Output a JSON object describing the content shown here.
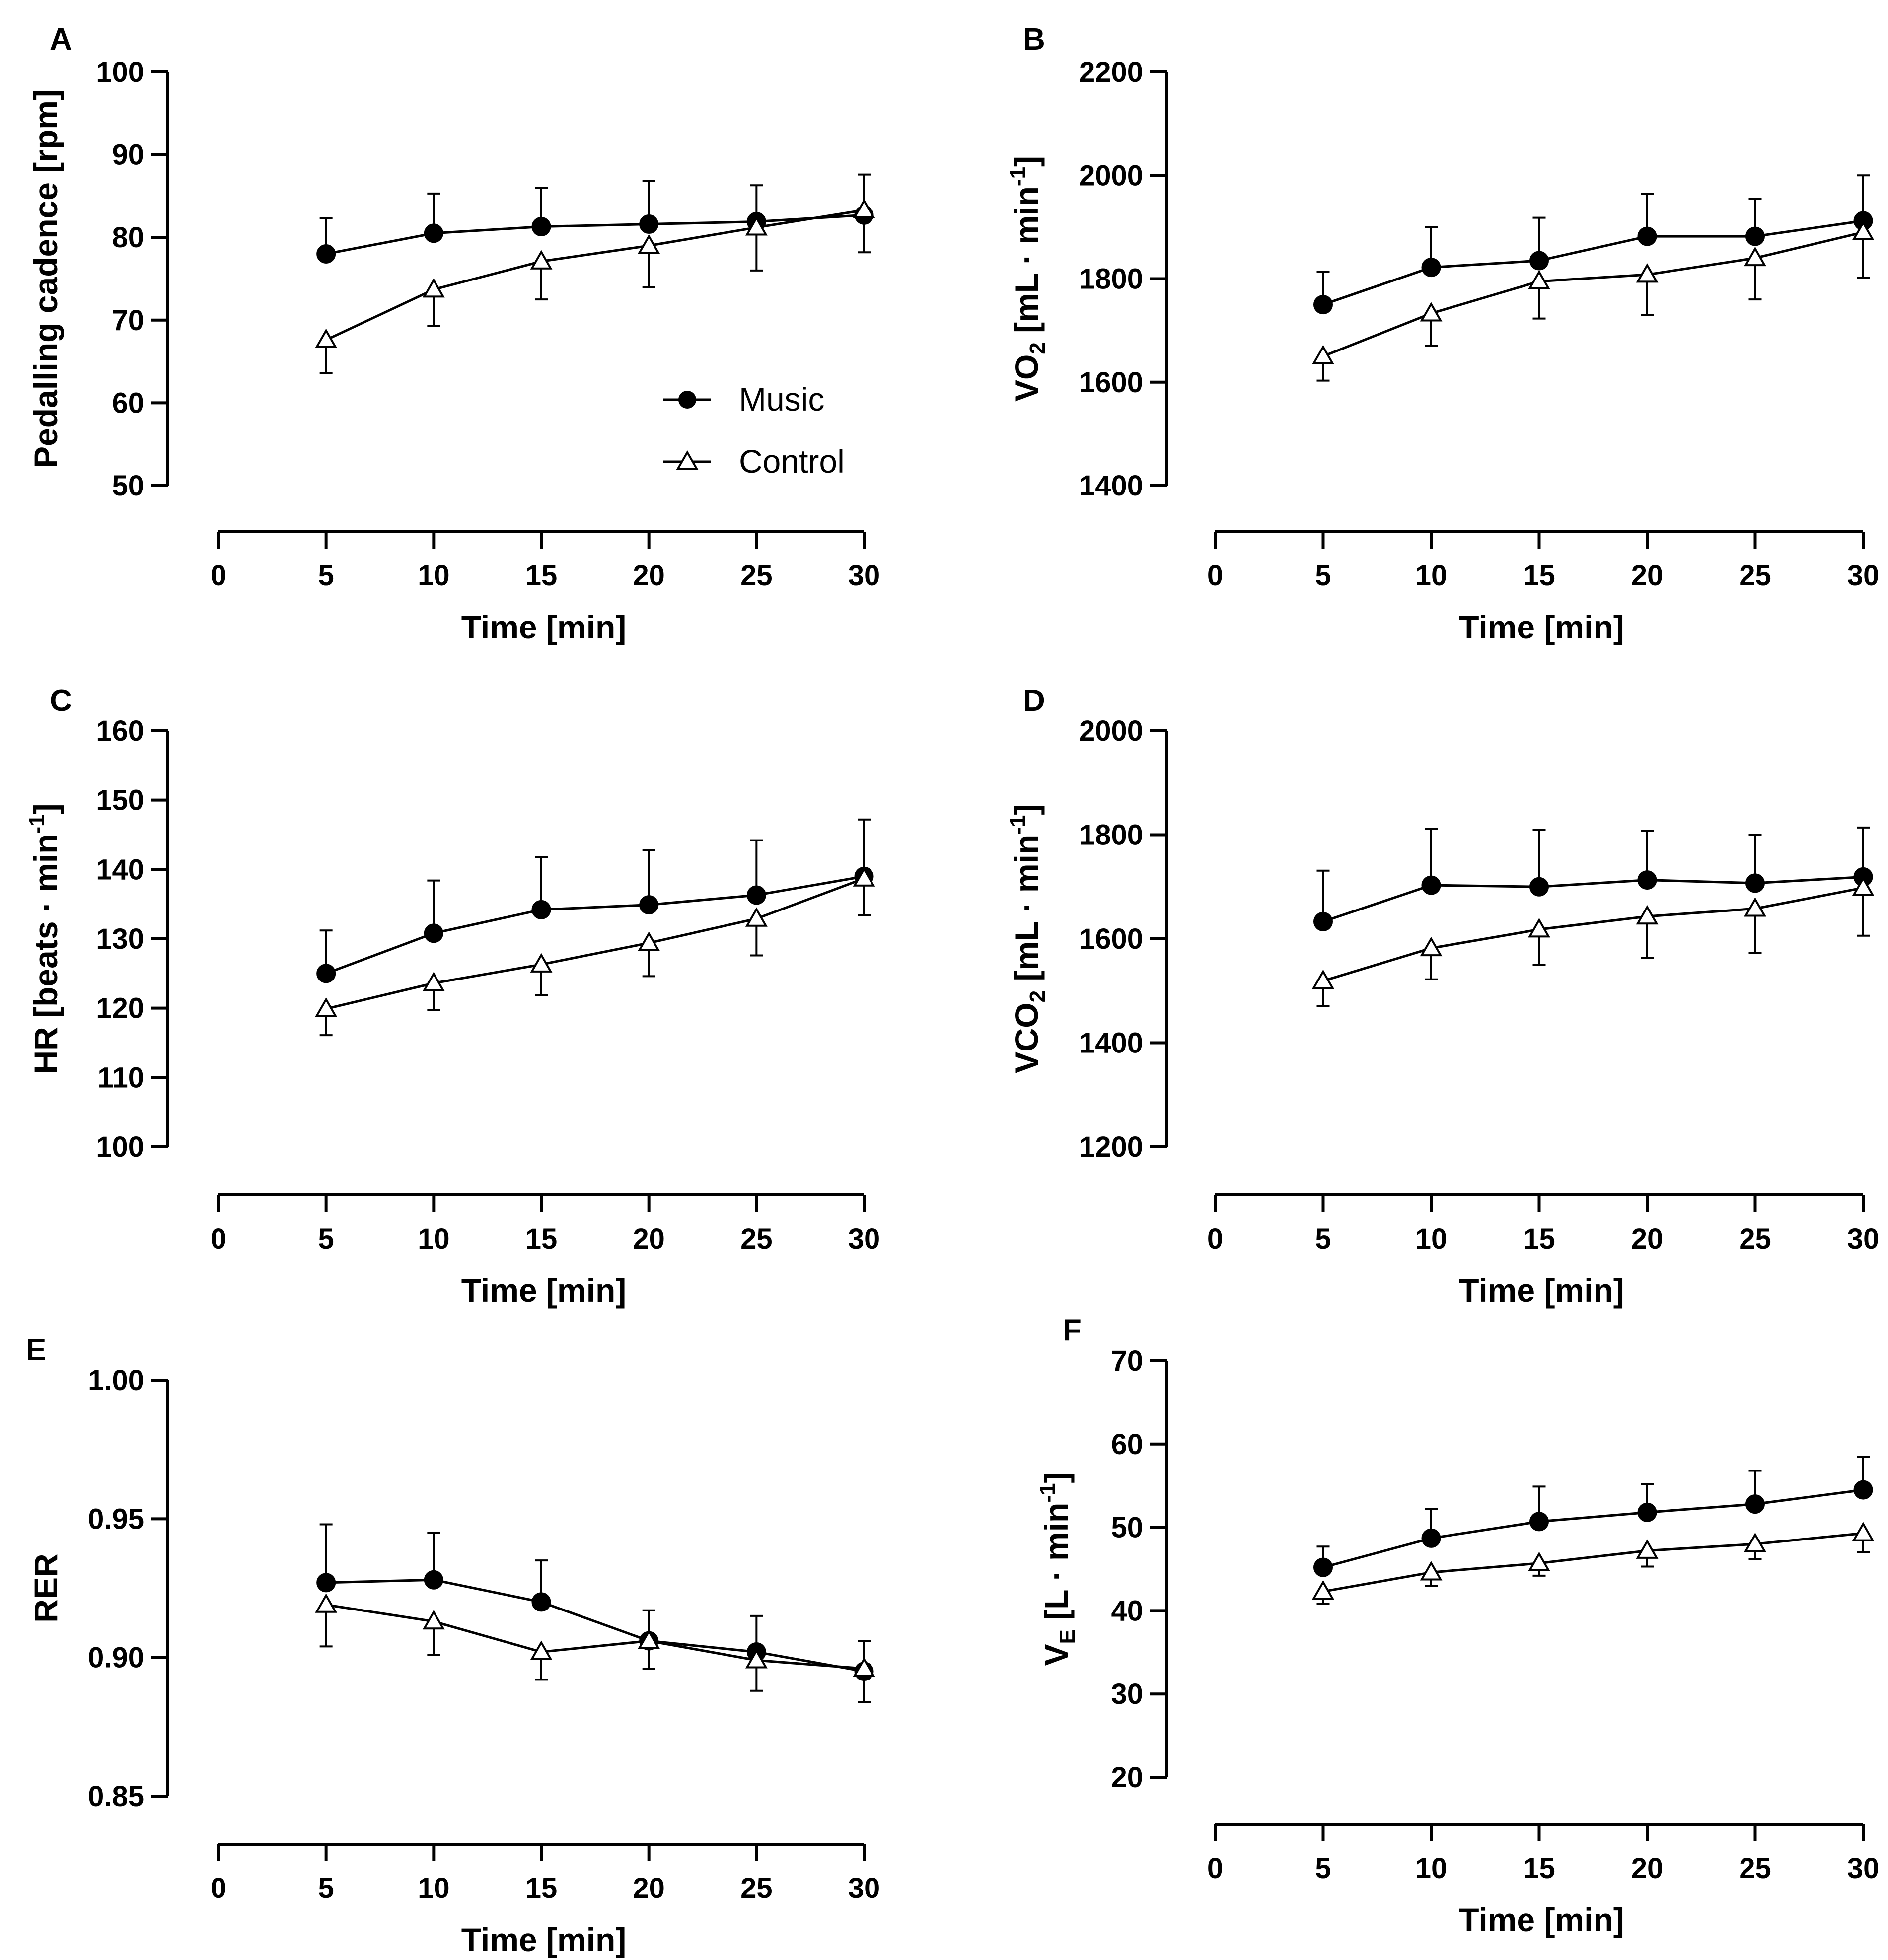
{
  "legend": {
    "music": "Music",
    "control": "Control"
  },
  "colors": {
    "music_fill": "#000000",
    "control_fill": "#ffffff",
    "stroke": "#000000"
  },
  "chart_data": [
    {
      "id": "A",
      "type": "line",
      "panel_label": "A",
      "xlabel": "Time [min]",
      "ylabel": "Pedalling cadence [rpm]",
      "x_ticks": [
        0,
        5,
        10,
        15,
        20,
        25,
        30
      ],
      "xlim": [
        0,
        30
      ],
      "y_ticks": [
        50,
        60,
        70,
        80,
        90,
        100
      ],
      "ylim": [
        50,
        100
      ],
      "show_legend": true,
      "series": [
        {
          "name": "Music",
          "marker": "circle",
          "x": [
            5,
            10,
            15,
            20,
            25,
            30
          ],
          "values": [
            78.0,
            80.5,
            81.3,
            81.6,
            81.9,
            82.7
          ],
          "error": [
            4.3,
            4.8,
            4.7,
            5.2,
            4.4,
            4.9
          ],
          "error_dir": "up"
        },
        {
          "name": "Control",
          "marker": "triangle",
          "x": [
            5,
            10,
            15,
            20,
            25,
            30
          ],
          "values": [
            67.6,
            73.7,
            77.1,
            79.0,
            81.2,
            83.3
          ],
          "error": [
            4.0,
            4.4,
            4.6,
            5.0,
            5.2,
            5.1
          ],
          "error_dir": "down"
        }
      ]
    },
    {
      "id": "B",
      "type": "line",
      "panel_label": "B",
      "xlabel": "Time [min]",
      "ylabel": "VO2 [mL · min-1]",
      "ylabel_parts": {
        "pre": "VO",
        "sub": "2",
        "mid": " [mL · min",
        "sup": "-1",
        "post": "]"
      },
      "x_ticks": [
        0,
        5,
        10,
        15,
        20,
        25,
        30
      ],
      "xlim": [
        0,
        30
      ],
      "y_ticks": [
        1400,
        1600,
        1800,
        2000,
        2200
      ],
      "ylim": [
        1400,
        2200
      ],
      "show_legend": false,
      "series": [
        {
          "name": "Music",
          "marker": "circle",
          "x": [
            5,
            10,
            15,
            20,
            25,
            30
          ],
          "values": [
            1750,
            1822,
            1835,
            1882,
            1882,
            1912
          ],
          "error": [
            63,
            78,
            83,
            82,
            73,
            88
          ],
          "error_dir": "up"
        },
        {
          "name": "Control",
          "marker": "triangle",
          "x": [
            5,
            10,
            15,
            20,
            25,
            30
          ],
          "values": [
            1650,
            1733,
            1795,
            1808,
            1840,
            1890
          ],
          "error": [
            47,
            63,
            72,
            78,
            80,
            88
          ],
          "error_dir": "down"
        }
      ]
    },
    {
      "id": "C",
      "type": "line",
      "panel_label": "C",
      "xlabel": "Time [min]",
      "ylabel": "HR [beats · min-1]",
      "ylabel_parts": {
        "pre": "HR [beats · min",
        "sub": "",
        "mid": "",
        "sup": "-1",
        "post": "]"
      },
      "x_ticks": [
        0,
        5,
        10,
        15,
        20,
        25,
        30
      ],
      "xlim": [
        0,
        30
      ],
      "y_ticks": [
        100,
        110,
        120,
        130,
        140,
        150,
        160
      ],
      "ylim": [
        100,
        160
      ],
      "show_legend": false,
      "series": [
        {
          "name": "Music",
          "marker": "circle",
          "x": [
            5,
            10,
            15,
            20,
            25,
            30
          ],
          "values": [
            125.0,
            130.8,
            134.2,
            134.9,
            136.3,
            139.0
          ],
          "error": [
            6.2,
            7.6,
            7.6,
            7.9,
            7.9,
            8.2
          ],
          "error_dir": "up"
        },
        {
          "name": "Control",
          "marker": "triangle",
          "x": [
            5,
            10,
            15,
            20,
            25,
            30
          ],
          "values": [
            119.9,
            123.6,
            126.3,
            129.4,
            132.9,
            138.7
          ],
          "error": [
            3.8,
            3.9,
            4.4,
            4.8,
            5.3,
            5.3
          ],
          "error_dir": "down"
        }
      ]
    },
    {
      "id": "D",
      "type": "line",
      "panel_label": "D",
      "xlabel": "Time [min]",
      "ylabel": "VCO2 [mL · min-1]",
      "ylabel_parts": {
        "pre": "VCO",
        "sub": "2",
        "mid": " [mL · min",
        "sup": "-1",
        "post": "]"
      },
      "x_ticks": [
        0,
        5,
        10,
        15,
        20,
        25,
        30
      ],
      "xlim": [
        0,
        30
      ],
      "y_ticks": [
        1200,
        1400,
        1600,
        1800,
        2000
      ],
      "ylim": [
        1200,
        2000
      ],
      "show_legend": false,
      "series": [
        {
          "name": "Music",
          "marker": "circle",
          "x": [
            5,
            10,
            15,
            20,
            25,
            30
          ],
          "values": [
            1633,
            1703,
            1700,
            1713,
            1707,
            1719
          ],
          "error": [
            98,
            108,
            110,
            95,
            93,
            95
          ],
          "error_dir": "up"
        },
        {
          "name": "Control",
          "marker": "triangle",
          "x": [
            5,
            10,
            15,
            20,
            25,
            30
          ],
          "values": [
            1519,
            1582,
            1618,
            1643,
            1658,
            1698
          ],
          "error": [
            48,
            60,
            68,
            80,
            85,
            92
          ],
          "error_dir": "down"
        }
      ]
    },
    {
      "id": "E",
      "type": "line",
      "panel_label": "E",
      "xlabel": "Time [min]",
      "ylabel": "RER",
      "x_ticks": [
        0,
        5,
        10,
        15,
        20,
        25,
        30
      ],
      "xlim": [
        0,
        30
      ],
      "y_ticks": [
        0.85,
        0.9,
        0.95,
        1.0
      ],
      "y_tick_labels": [
        "0.85",
        "0.90",
        "0.95",
        "1.00"
      ],
      "ylim": [
        0.85,
        1.0
      ],
      "show_legend": false,
      "series": [
        {
          "name": "Music",
          "marker": "circle",
          "x": [
            5,
            10,
            15,
            20,
            25,
            30
          ],
          "values": [
            0.927,
            0.928,
            0.92,
            0.906,
            0.902,
            0.895
          ],
          "error": [
            0.021,
            0.017,
            0.015,
            0.011,
            0.013,
            0.011
          ],
          "error_dir": "up"
        },
        {
          "name": "Control",
          "marker": "triangle",
          "x": [
            5,
            10,
            15,
            20,
            25,
            30
          ],
          "values": [
            0.919,
            0.913,
            0.902,
            0.906,
            0.899,
            0.896
          ],
          "error": [
            0.015,
            0.012,
            0.01,
            0.01,
            0.011,
            0.012
          ],
          "error_dir": "down"
        }
      ]
    },
    {
      "id": "F",
      "type": "line",
      "panel_label": "F",
      "xlabel": "Time [min]",
      "ylabel": "VE [L · min-1]",
      "ylabel_parts": {
        "pre": "V",
        "sub": "E",
        "mid": " [L · min",
        "sup": "-1",
        "post": "]"
      },
      "x_ticks": [
        0,
        5,
        10,
        15,
        20,
        25,
        30
      ],
      "xlim": [
        0,
        30
      ],
      "y_ticks": [
        20,
        30,
        40,
        50,
        60,
        70
      ],
      "ylim": [
        20,
        70
      ],
      "show_legend": false,
      "series": [
        {
          "name": "Music",
          "marker": "circle",
          "x": [
            5,
            10,
            15,
            20,
            25,
            30
          ],
          "values": [
            45.2,
            48.7,
            50.7,
            51.8,
            52.8,
            54.5
          ],
          "error": [
            2.5,
            3.5,
            4.2,
            3.4,
            4.0,
            4.0
          ],
          "error_dir": "up"
        },
        {
          "name": "Control",
          "marker": "triangle",
          "x": [
            5,
            10,
            15,
            20,
            25,
            30
          ],
          "values": [
            42.3,
            44.6,
            45.7,
            47.2,
            48.0,
            49.3
          ],
          "error": [
            1.5,
            1.6,
            1.5,
            1.9,
            1.8,
            2.3
          ],
          "error_dir": "down"
        }
      ]
    }
  ]
}
